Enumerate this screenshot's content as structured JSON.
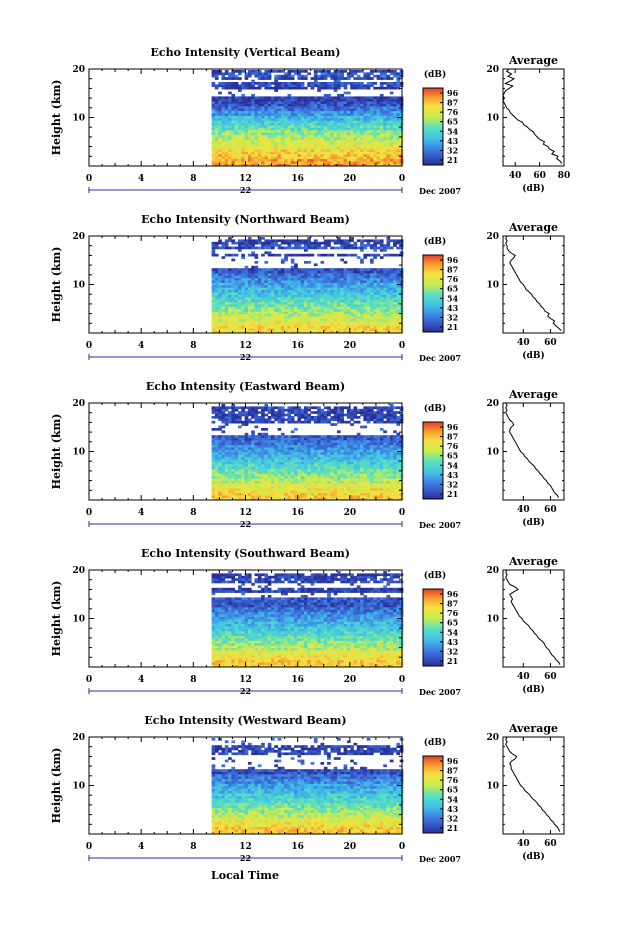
{
  "figure": {
    "xlabel": "Local Time",
    "date_label": "Dec 2007",
    "colorbar_unit": "(dB)",
    "colorbar_ticks": [
      "96",
      "87",
      "76",
      "65",
      "54",
      "43",
      "32",
      "21"
    ],
    "colors": {
      "missing": "#ffffff",
      "line": "#000000"
    }
  },
  "chart_data": [
    {
      "type": "heatmap",
      "title": "Echo Intensity (Vertical Beam)",
      "ylabel": "Height (km)",
      "xlim": [
        0,
        24
      ],
      "ylim": [
        0,
        20
      ],
      "xticks": [
        "0",
        "4",
        "8",
        "12",
        "16",
        "20",
        "0"
      ],
      "yticks": [
        "10",
        "20"
      ],
      "day_label": "22",
      "data_start_hour": 9.4,
      "colorbar": {
        "min": 21,
        "max": 96,
        "unit": "dB"
      },
      "intensity_profile": [
        [
          1,
          86
        ],
        [
          2,
          82
        ],
        [
          3,
          78
        ],
        [
          4,
          74
        ],
        [
          5,
          70
        ],
        [
          6,
          66
        ],
        [
          7,
          62
        ],
        [
          8,
          56
        ],
        [
          9,
          52
        ],
        [
          10,
          46
        ],
        [
          11,
          40
        ],
        [
          12,
          34
        ],
        [
          13,
          28
        ],
        [
          14,
          24
        ],
        [
          15,
          0
        ],
        [
          16,
          22
        ],
        [
          17,
          28
        ],
        [
          18,
          24
        ],
        [
          19,
          30
        ],
        [
          20,
          24
        ]
      ],
      "gaps_km": [
        [
          14.8,
          15.6
        ],
        [
          17.2,
          17.6
        ]
      ],
      "average_profile": {
        "title": "Average",
        "xlabel": "(dB)",
        "xticks": [
          "40",
          "60",
          "80"
        ],
        "xlim": [
          30,
          80
        ],
        "ylim": [
          0,
          20
        ],
        "yticks": [
          "10",
          "20"
        ],
        "height_km": [
          0.5,
          1,
          1.5,
          2,
          2.5,
          3,
          3.5,
          4,
          4.5,
          5,
          5.5,
          6,
          6.5,
          7,
          7.5,
          8,
          8.5,
          9,
          9.5,
          10,
          10.5,
          11,
          11.5,
          12,
          12.5,
          13,
          13.5,
          14,
          14.5,
          15,
          15.5,
          16,
          16.5,
          17,
          17.5,
          18,
          18.5,
          19,
          19.5,
          20
        ],
        "intensity_db": [
          78,
          77,
          74,
          75,
          70,
          72,
          68,
          67,
          63,
          64,
          60,
          58,
          56,
          55,
          52,
          50,
          47,
          46,
          42,
          40,
          38,
          36,
          35,
          33,
          32,
          31,
          30,
          31,
          30,
          31,
          32,
          35,
          38,
          32,
          36,
          39,
          34,
          37,
          33,
          35
        ]
      }
    },
    {
      "type": "heatmap",
      "title": "Echo Intensity (Northward Beam)",
      "ylabel": "Height (km)",
      "xlim": [
        0,
        24
      ],
      "ylim": [
        0,
        20
      ],
      "xticks": [
        "0",
        "4",
        "8",
        "12",
        "16",
        "20",
        "0"
      ],
      "yticks": [
        "10",
        "20"
      ],
      "day_label": "22",
      "data_start_hour": 9.4,
      "colorbar": {
        "min": 21,
        "max": 96,
        "unit": "dB"
      },
      "intensity_profile": [
        [
          1,
          78
        ],
        [
          2,
          74
        ],
        [
          3,
          70
        ],
        [
          4,
          66
        ],
        [
          5,
          62
        ],
        [
          6,
          58
        ],
        [
          7,
          54
        ],
        [
          8,
          50
        ],
        [
          9,
          46
        ],
        [
          10,
          42
        ],
        [
          11,
          38
        ],
        [
          12,
          34
        ],
        [
          13,
          28
        ],
        [
          14,
          0
        ],
        [
          15,
          0
        ],
        [
          16,
          24
        ],
        [
          17,
          0
        ],
        [
          18,
          28
        ],
        [
          19,
          24
        ],
        [
          20,
          0
        ]
      ],
      "gaps_km": [
        [
          13.2,
          15.6
        ],
        [
          16.6,
          17.4
        ]
      ],
      "average_profile": {
        "title": "Average",
        "xlabel": "(dB)",
        "xticks": [
          "40",
          "60"
        ],
        "xlim": [
          25,
          70
        ],
        "ylim": [
          0,
          20
        ],
        "yticks": [
          "10",
          "20"
        ],
        "height_km": [
          0.5,
          1,
          1.5,
          2,
          2.5,
          3,
          3.5,
          4,
          4.5,
          5,
          5.5,
          6,
          6.5,
          7,
          7.5,
          8,
          8.5,
          9,
          9.5,
          10,
          10.5,
          11,
          11.5,
          12,
          12.5,
          13,
          13.5,
          14,
          14.5,
          15,
          15.5,
          16,
          16.5,
          17,
          17.5,
          18,
          18.5,
          19,
          19.5,
          20
        ],
        "intensity_db": [
          68,
          66,
          64,
          62,
          63,
          60,
          58,
          59,
          56,
          55,
          53,
          52,
          50,
          49,
          47,
          46,
          44,
          42,
          41,
          40,
          38,
          37,
          36,
          35,
          34,
          33,
          32,
          31,
          30,
          31,
          33,
          34,
          31,
          29,
          28,
          28,
          27,
          28,
          27,
          28
        ]
      }
    },
    {
      "type": "heatmap",
      "title": "Echo Intensity (Eastward Beam)",
      "ylabel": "Height (km)",
      "xlim": [
        0,
        24
      ],
      "ylim": [
        0,
        20
      ],
      "xticks": [
        "0",
        "4",
        "8",
        "12",
        "16",
        "20",
        "0"
      ],
      "yticks": [
        "10",
        "20"
      ],
      "day_label": "22",
      "data_start_hour": 9.4,
      "colorbar": {
        "min": 21,
        "max": 96,
        "unit": "dB"
      },
      "intensity_profile": [
        [
          1,
          80
        ],
        [
          2,
          76
        ],
        [
          3,
          72
        ],
        [
          4,
          66
        ],
        [
          5,
          62
        ],
        [
          6,
          58
        ],
        [
          7,
          54
        ],
        [
          8,
          50
        ],
        [
          9,
          46
        ],
        [
          10,
          42
        ],
        [
          11,
          38
        ],
        [
          12,
          34
        ],
        [
          13,
          30
        ],
        [
          14,
          0
        ],
        [
          15,
          0
        ],
        [
          16,
          24
        ],
        [
          17,
          26
        ],
        [
          18,
          24
        ],
        [
          19,
          26
        ],
        [
          20,
          0
        ]
      ],
      "gaps_km": [
        [
          13.2,
          15.6
        ]
      ],
      "average_profile": {
        "title": "Average",
        "xlabel": "(dB)",
        "xticks": [
          "40",
          "60"
        ],
        "xlim": [
          25,
          70
        ],
        "ylim": [
          0,
          20
        ],
        "yticks": [
          "10",
          "20"
        ],
        "height_km": [
          0.5,
          1,
          1.5,
          2,
          2.5,
          3,
          3.5,
          4,
          4.5,
          5,
          5.5,
          6,
          6.5,
          7,
          7.5,
          8,
          8.5,
          9,
          9.5,
          10,
          10.5,
          11,
          11.5,
          12,
          12.5,
          13,
          13.5,
          14,
          14.5,
          15,
          15.5,
          16,
          16.5,
          17,
          17.5,
          18,
          18.5,
          19,
          19.5,
          20
        ],
        "intensity_db": [
          66,
          65,
          63,
          62,
          61,
          60,
          58,
          57,
          55,
          54,
          52,
          51,
          49,
          48,
          46,
          44,
          43,
          41,
          40,
          38,
          37,
          36,
          35,
          34,
          33,
          32,
          31,
          30,
          30,
          31,
          33,
          32,
          30,
          29,
          28,
          27,
          28,
          27,
          28,
          27
        ]
      }
    },
    {
      "type": "heatmap",
      "title": "Echo Intensity (Southward Beam)",
      "ylabel": "Height (km)",
      "xlim": [
        0,
        24
      ],
      "ylim": [
        0,
        20
      ],
      "xticks": [
        "0",
        "4",
        "8",
        "12",
        "16",
        "20",
        "0"
      ],
      "yticks": [
        "10",
        "20"
      ],
      "day_label": "22",
      "data_start_hour": 9.4,
      "colorbar": {
        "min": 21,
        "max": 96,
        "unit": "dB"
      },
      "intensity_profile": [
        [
          1,
          80
        ],
        [
          2,
          76
        ],
        [
          3,
          72
        ],
        [
          4,
          66
        ],
        [
          5,
          62
        ],
        [
          6,
          58
        ],
        [
          7,
          54
        ],
        [
          8,
          50
        ],
        [
          9,
          46
        ],
        [
          10,
          42
        ],
        [
          11,
          38
        ],
        [
          12,
          34
        ],
        [
          13,
          28
        ],
        [
          14,
          30
        ],
        [
          15,
          0
        ],
        [
          16,
          24
        ],
        [
          17,
          0
        ],
        [
          18,
          26
        ],
        [
          19,
          24
        ],
        [
          20,
          0
        ]
      ],
      "gaps_km": [
        [
          14.6,
          15.4
        ],
        [
          16.5,
          17.2
        ]
      ],
      "average_profile": {
        "title": "Average",
        "xlabel": "(dB)",
        "xticks": [
          "40",
          "60"
        ],
        "xlim": [
          25,
          70
        ],
        "ylim": [
          0,
          20
        ],
        "yticks": [
          "10",
          "20"
        ],
        "height_km": [
          0.5,
          1,
          1.5,
          2,
          2.5,
          3,
          3.5,
          4,
          4.5,
          5,
          5.5,
          6,
          6.5,
          7,
          7.5,
          8,
          8.5,
          9,
          9.5,
          10,
          10.5,
          11,
          11.5,
          12,
          12.5,
          13,
          13.5,
          14,
          14.5,
          15,
          15.5,
          16,
          16.5,
          17,
          17.5,
          18,
          18.5,
          19,
          19.5,
          20
        ],
        "intensity_db": [
          67,
          66,
          64,
          63,
          61,
          60,
          59,
          57,
          56,
          55,
          53,
          51,
          50,
          48,
          47,
          45,
          44,
          42,
          40,
          39,
          37,
          36,
          35,
          34,
          33,
          32,
          31,
          32,
          31,
          30,
          33,
          36,
          34,
          30,
          29,
          28,
          27,
          28,
          27,
          28
        ]
      }
    },
    {
      "type": "heatmap",
      "title": "Echo Intensity (Westward Beam)",
      "ylabel": "Height (km)",
      "xlim": [
        0,
        24
      ],
      "ylim": [
        0,
        20
      ],
      "xticks": [
        "0",
        "4",
        "8",
        "12",
        "16",
        "20",
        "0"
      ],
      "yticks": [
        "10",
        "20"
      ],
      "day_label": "22",
      "data_start_hour": 9.4,
      "colorbar": {
        "min": 21,
        "max": 96,
        "unit": "dB"
      },
      "intensity_profile": [
        [
          1,
          80
        ],
        [
          2,
          76
        ],
        [
          3,
          72
        ],
        [
          4,
          66
        ],
        [
          5,
          62
        ],
        [
          6,
          58
        ],
        [
          7,
          54
        ],
        [
          8,
          50
        ],
        [
          9,
          46
        ],
        [
          10,
          42
        ],
        [
          11,
          38
        ],
        [
          12,
          34
        ],
        [
          13,
          28
        ],
        [
          14,
          0
        ],
        [
          15,
          0
        ],
        [
          16,
          0
        ],
        [
          17,
          26
        ],
        [
          18,
          24
        ],
        [
          19,
          0
        ],
        [
          20,
          0
        ]
      ],
      "gaps_km": [
        [
          13.2,
          16.4
        ]
      ],
      "average_profile": {
        "title": "Average",
        "xlabel": "(dB)",
        "xticks": [
          "40",
          "60"
        ],
        "xlim": [
          25,
          70
        ],
        "ylim": [
          0,
          20
        ],
        "yticks": [
          "10",
          "20"
        ],
        "height_km": [
          0.5,
          1,
          1.5,
          2,
          2.5,
          3,
          3.5,
          4,
          4.5,
          5,
          5.5,
          6,
          6.5,
          7,
          7.5,
          8,
          8.5,
          9,
          9.5,
          10,
          10.5,
          11,
          11.5,
          12,
          12.5,
          13,
          13.5,
          14,
          14.5,
          15,
          15.5,
          16,
          16.5,
          17,
          17.5,
          18,
          18.5,
          19,
          19.5,
          20
        ],
        "intensity_db": [
          67,
          66,
          65,
          63,
          62,
          60,
          59,
          57,
          56,
          54,
          53,
          51,
          50,
          48,
          46,
          45,
          43,
          41,
          40,
          38,
          37,
          36,
          35,
          34,
          33,
          32,
          31,
          31,
          30,
          31,
          34,
          35,
          32,
          30,
          29,
          28,
          27,
          28,
          27,
          28
        ]
      }
    }
  ]
}
